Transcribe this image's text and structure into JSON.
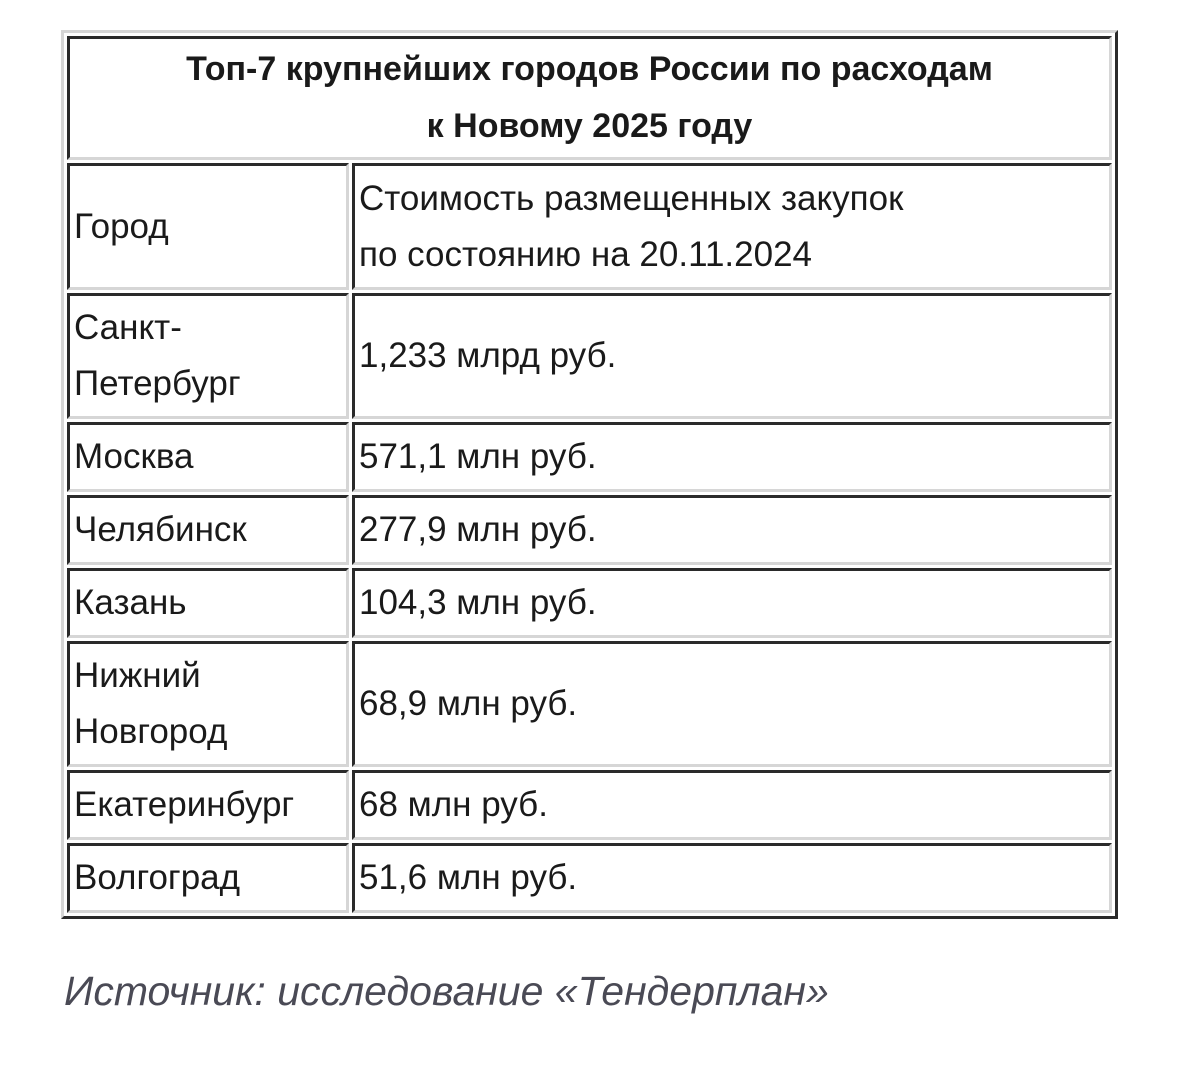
{
  "table": {
    "title_line1": "Топ-7 крупнейших городов России по расходам",
    "title_line2": "к Новому 2025 году",
    "headers": {
      "city": "Город",
      "cost_line1": "Стоимость размещенных закупок",
      "cost_line2": "по состоянию на 20.11.2024"
    },
    "rows": [
      {
        "city_line1": "Санкт-",
        "city_line2": "Петербург",
        "cost": "1,233 млрд руб."
      },
      {
        "city_line1": "Москва",
        "cost": "571,1 млн руб."
      },
      {
        "city_line1": "Челябинск",
        "cost": "277,9 млн руб."
      },
      {
        "city_line1": "Казань",
        "cost": "104,3 млн руб."
      },
      {
        "city_line1": "Нижний",
        "city_line2": "Новгород",
        "cost": "68,9 млн руб."
      },
      {
        "city_line1": "Екатеринбург",
        "cost": "68 млн руб."
      },
      {
        "city_line1": "Волгоград",
        "cost": "51,6 млн руб."
      }
    ]
  },
  "source": "Источник: исследование «Тендерплан»"
}
